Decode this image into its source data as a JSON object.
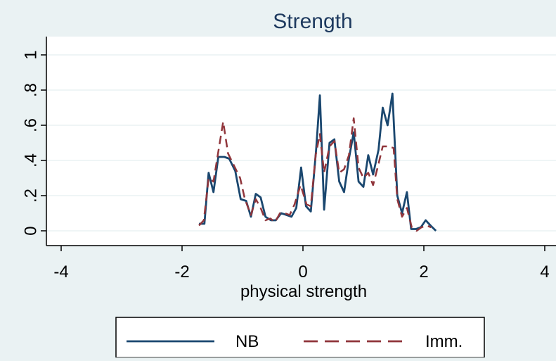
{
  "chart_data": {
    "type": "line",
    "title": "Strength",
    "xlabel": "physical strength",
    "ylabel": "",
    "xlim": [
      -4,
      4
    ],
    "ylim": [
      0,
      1
    ],
    "x_ticks": [
      -4,
      -2,
      0,
      2,
      4
    ],
    "x_tick_labels": [
      "-4",
      "-2",
      "0",
      "2",
      "4"
    ],
    "y_ticks": [
      0,
      0.2,
      0.4,
      0.6,
      0.8,
      1
    ],
    "y_tick_labels": [
      "0",
      ".2",
      ".4",
      ".6",
      ".8",
      "1"
    ],
    "grid": true,
    "legend_position": "bottom",
    "background_color": "#eaf2f3",
    "plot_background_color": "#ffffff",
    "series": [
      {
        "name": "NB",
        "color": "#1a476f",
        "dash": "solid",
        "points": [
          [
            -1.72,
            0.04
          ],
          [
            -1.63,
            0.04
          ],
          [
            -1.56,
            0.33
          ],
          [
            -1.48,
            0.22
          ],
          [
            -1.4,
            0.42
          ],
          [
            -1.3,
            0.42
          ],
          [
            -1.22,
            0.41
          ],
          [
            -1.12,
            0.34
          ],
          [
            -1.03,
            0.18
          ],
          [
            -0.94,
            0.17
          ],
          [
            -0.86,
            0.08
          ],
          [
            -0.78,
            0.21
          ],
          [
            -0.7,
            0.19
          ],
          [
            -0.62,
            0.08
          ],
          [
            -0.53,
            0.06
          ],
          [
            -0.45,
            0.06
          ],
          [
            -0.36,
            0.1
          ],
          [
            -0.27,
            0.09
          ],
          [
            -0.19,
            0.08
          ],
          [
            -0.11,
            0.13
          ],
          [
            -0.03,
            0.36
          ],
          [
            0.05,
            0.14
          ],
          [
            0.13,
            0.11
          ],
          [
            0.22,
            0.47
          ],
          [
            0.28,
            0.77
          ],
          [
            0.35,
            0.12
          ],
          [
            0.44,
            0.5
          ],
          [
            0.52,
            0.52
          ],
          [
            0.6,
            0.28
          ],
          [
            0.68,
            0.22
          ],
          [
            0.76,
            0.41
          ],
          [
            0.84,
            0.56
          ],
          [
            0.92,
            0.28
          ],
          [
            1.0,
            0.25
          ],
          [
            1.08,
            0.43
          ],
          [
            1.16,
            0.32
          ],
          [
            1.25,
            0.46
          ],
          [
            1.32,
            0.7
          ],
          [
            1.4,
            0.6
          ],
          [
            1.48,
            0.78
          ],
          [
            1.56,
            0.2
          ],
          [
            1.64,
            0.1
          ],
          [
            1.72,
            0.22
          ],
          [
            1.79,
            0.01
          ],
          [
            1.87,
            0.01
          ],
          [
            1.95,
            0.02
          ],
          [
            2.03,
            0.06
          ],
          [
            2.11,
            0.03
          ],
          [
            2.2,
            0.0
          ]
        ]
      },
      {
        "name": "Imm.",
        "color": "#90353b",
        "dash": "dashed",
        "points": [
          [
            -1.72,
            0.03
          ],
          [
            -1.64,
            0.06
          ],
          [
            -1.56,
            0.3
          ],
          [
            -1.48,
            0.28
          ],
          [
            -1.4,
            0.45
          ],
          [
            -1.32,
            0.62
          ],
          [
            -1.24,
            0.44
          ],
          [
            -1.14,
            0.37
          ],
          [
            -1.04,
            0.3
          ],
          [
            -0.96,
            0.18
          ],
          [
            -0.86,
            0.09
          ],
          [
            -0.78,
            0.18
          ],
          [
            -0.7,
            0.13
          ],
          [
            -0.62,
            0.06
          ],
          [
            -0.54,
            0.07
          ],
          [
            -0.46,
            0.05
          ],
          [
            -0.38,
            0.1
          ],
          [
            -0.3,
            0.1
          ],
          [
            -0.22,
            0.09
          ],
          [
            -0.14,
            0.15
          ],
          [
            -0.04,
            0.26
          ],
          [
            0.06,
            0.15
          ],
          [
            0.13,
            0.14
          ],
          [
            0.21,
            0.43
          ],
          [
            0.28,
            0.55
          ],
          [
            0.35,
            0.33
          ],
          [
            0.44,
            0.48
          ],
          [
            0.52,
            0.51
          ],
          [
            0.6,
            0.33
          ],
          [
            0.68,
            0.35
          ],
          [
            0.76,
            0.43
          ],
          [
            0.84,
            0.64
          ],
          [
            0.92,
            0.36
          ],
          [
            1.0,
            0.3
          ],
          [
            1.08,
            0.33
          ],
          [
            1.16,
            0.26
          ],
          [
            1.25,
            0.38
          ],
          [
            1.32,
            0.48
          ],
          [
            1.42,
            0.48
          ],
          [
            1.5,
            0.47
          ],
          [
            1.56,
            0.18
          ],
          [
            1.64,
            0.08
          ],
          [
            1.72,
            0.13
          ],
          [
            1.8,
            0.02
          ],
          [
            1.88,
            0.0
          ],
          [
            1.96,
            0.02
          ],
          [
            2.04,
            0.03
          ],
          [
            2.12,
            0.02
          ]
        ]
      }
    ]
  }
}
